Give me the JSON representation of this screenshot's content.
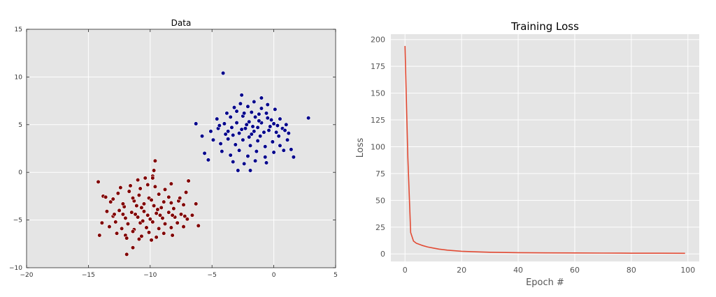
{
  "chart_data": [
    {
      "type": "scatter",
      "title": "Data",
      "xlabel": "",
      "ylabel": "",
      "xlim": [
        -20,
        5
      ],
      "ylim": [
        -10,
        15
      ],
      "xticks": [
        -20,
        -15,
        -10,
        -5,
        0,
        5
      ],
      "yticks": [
        -10,
        -5,
        0,
        5,
        10,
        15
      ],
      "grid": true,
      "colors": {
        "class_0": "#800000",
        "class_1": "#00008b",
        "background": "#e5e5e5"
      },
      "series": [
        {
          "points": [
            [
              -13.8,
              -2.5
            ],
            [
              -13.2,
              -3.1
            ],
            [
              -12.6,
              -2.2
            ],
            [
              -12.1,
              -3.6
            ],
            [
              -11.7,
              -2.0
            ],
            [
              -11.3,
              -3.0
            ],
            [
              -10.9,
              -2.4
            ],
            [
              -10.5,
              -3.3
            ],
            [
              -10.1,
              -2.7
            ],
            [
              -9.7,
              -3.5
            ],
            [
              -9.3,
              -2.3
            ],
            [
              -8.9,
              -3.1
            ],
            [
              -8.5,
              -2.6
            ],
            [
              -8.1,
              -3.8
            ],
            [
              -7.7,
              -3.0
            ],
            [
              -7.3,
              -3.4
            ],
            [
              -13.5,
              -4.1
            ],
            [
              -13.0,
              -4.6
            ],
            [
              -12.5,
              -4.0
            ],
            [
              -12.0,
              -4.8
            ],
            [
              -11.5,
              -4.2
            ],
            [
              -11.0,
              -4.7
            ],
            [
              -10.5,
              -4.1
            ],
            [
              -10.0,
              -4.9
            ],
            [
              -9.5,
              -4.3
            ],
            [
              -9.0,
              -4.8
            ],
            [
              -8.5,
              -4.2
            ],
            [
              -8.0,
              -4.7
            ],
            [
              -7.5,
              -4.4
            ],
            [
              -7.0,
              -4.9
            ],
            [
              -6.6,
              -4.5
            ],
            [
              -13.9,
              -5.3
            ],
            [
              -13.3,
              -5.7
            ],
            [
              -12.8,
              -5.2
            ],
            [
              -12.3,
              -5.9
            ],
            [
              -11.8,
              -5.4
            ],
            [
              -11.3,
              -6.0
            ],
            [
              -10.8,
              -5.3
            ],
            [
              -10.3,
              -5.8
            ],
            [
              -9.8,
              -5.2
            ],
            [
              -9.3,
              -5.9
            ],
            [
              -8.8,
              -5.4
            ],
            [
              -8.3,
              -5.8
            ],
            [
              -7.8,
              -5.3
            ],
            [
              -7.3,
              -5.7
            ],
            [
              -12.7,
              -6.4
            ],
            [
              -12.0,
              -6.6
            ],
            [
              -11.4,
              -6.2
            ],
            [
              -10.7,
              -6.7
            ],
            [
              -10.1,
              -6.3
            ],
            [
              -9.5,
              -6.8
            ],
            [
              -8.9,
              -6.4
            ],
            [
              -8.2,
              -6.6
            ],
            [
              -11.9,
              -6.9
            ],
            [
              -10.9,
              -7.0
            ],
            [
              -9.9,
              -7.1
            ],
            [
              -12.4,
              -1.6
            ],
            [
              -11.6,
              -1.4
            ],
            [
              -10.8,
              -1.7
            ],
            [
              -10.2,
              -1.3
            ],
            [
              -9.6,
              -1.5
            ],
            [
              -8.8,
              -1.8
            ],
            [
              -8.3,
              -1.2
            ],
            [
              -11.0,
              -0.8
            ],
            [
              -10.4,
              -0.6
            ],
            [
              -9.8,
              -0.4
            ],
            [
              -13.0,
              -2.8
            ],
            [
              -12.2,
              -3.3
            ],
            [
              -11.4,
              -2.7
            ],
            [
              -10.7,
              -3.7
            ],
            [
              -9.9,
              -2.9
            ],
            [
              -9.1,
              -3.7
            ],
            [
              -8.3,
              -3.2
            ],
            [
              -7.6,
              -2.7
            ],
            [
              -12.9,
              -4.4
            ],
            [
              -12.2,
              -4.4
            ],
            [
              -11.2,
              -4.4
            ],
            [
              -10.2,
              -4.5
            ],
            [
              -9.2,
              -4.5
            ],
            [
              -8.2,
              -4.5
            ],
            [
              -7.2,
              -4.6
            ],
            [
              -14.2,
              -1.0
            ],
            [
              -14.1,
              -6.6
            ],
            [
              -6.1,
              -5.6
            ],
            [
              -6.3,
              -3.3
            ],
            [
              -11.4,
              -7.9
            ],
            [
              -11.9,
              -8.6
            ],
            [
              -9.8,
              -0.6
            ],
            [
              -9.7,
              0.2
            ],
            [
              -9.6,
              1.2
            ],
            [
              -6.9,
              -0.9
            ],
            [
              -13.6,
              -2.6
            ],
            [
              -7.1,
              -2.1
            ],
            [
              -10.6,
              -5.1
            ],
            [
              -9.4,
              -3.9
            ],
            [
              -11.1,
              -3.5
            ]
          ]
        },
        {
          "points": [
            [
              -4.1,
              10.4
            ],
            [
              2.8,
              5.7
            ],
            [
              -6.3,
              5.1
            ],
            [
              -5.3,
              1.3
            ],
            [
              -2.9,
              0.2
            ],
            [
              -1.9,
              0.2
            ],
            [
              1.6,
              1.6
            ],
            [
              -2.6,
              8.1
            ],
            [
              -3.8,
              6.2
            ],
            [
              -3.2,
              6.8
            ],
            [
              -2.7,
              7.2
            ],
            [
              -2.1,
              6.9
            ],
            [
              -1.6,
              7.4
            ],
            [
              -1.0,
              6.7
            ],
            [
              -0.5,
              7.1
            ],
            [
              0.1,
              6.6
            ],
            [
              -4.6,
              5.6
            ],
            [
              -4.0,
              5.1
            ],
            [
              -3.5,
              5.8
            ],
            [
              -3.0,
              5.2
            ],
            [
              -2.5,
              5.9
            ],
            [
              -2.0,
              5.3
            ],
            [
              -1.5,
              5.8
            ],
            [
              -1.0,
              5.2
            ],
            [
              -0.5,
              5.7
            ],
            [
              0.0,
              5.1
            ],
            [
              0.5,
              5.6
            ],
            [
              1.0,
              5.0
            ],
            [
              -5.1,
              4.3
            ],
            [
              -4.5,
              4.6
            ],
            [
              -3.9,
              4.0
            ],
            [
              -3.4,
              4.7
            ],
            [
              -2.8,
              4.1
            ],
            [
              -2.3,
              4.6
            ],
            [
              -1.8,
              4.0
            ],
            [
              -1.3,
              4.7
            ],
            [
              -0.8,
              4.2
            ],
            [
              -0.3,
              4.8
            ],
            [
              0.2,
              4.2
            ],
            [
              0.7,
              4.6
            ],
            [
              1.2,
              4.1
            ],
            [
              -4.9,
              3.4
            ],
            [
              -4.3,
              3.0
            ],
            [
              -3.7,
              3.5
            ],
            [
              -3.1,
              2.9
            ],
            [
              -2.5,
              3.4
            ],
            [
              -1.9,
              2.8
            ],
            [
              -1.3,
              3.3
            ],
            [
              -0.7,
              2.7
            ],
            [
              -0.1,
              3.2
            ],
            [
              0.5,
              2.8
            ],
            [
              1.1,
              3.4
            ],
            [
              -4.2,
              2.2
            ],
            [
              -3.5,
              1.8
            ],
            [
              -2.8,
              2.3
            ],
            [
              -2.1,
              1.7
            ],
            [
              -1.4,
              2.2
            ],
            [
              -0.7,
              1.6
            ],
            [
              0.0,
              2.1
            ],
            [
              0.8,
              2.3
            ],
            [
              -3.3,
              1.1
            ],
            [
              -2.4,
              0.9
            ],
            [
              -1.5,
              1.2
            ],
            [
              -0.6,
              1.0
            ],
            [
              -3.0,
              6.4
            ],
            [
              -2.4,
              6.2
            ],
            [
              -1.8,
              6.3
            ],
            [
              -1.2,
              6.1
            ],
            [
              -0.6,
              6.2
            ],
            [
              -4.4,
              4.9
            ],
            [
              -3.7,
              4.3
            ],
            [
              -3.3,
              3.9
            ],
            [
              -2.6,
              4.5
            ],
            [
              -2.0,
              3.7
            ],
            [
              -1.6,
              4.3
            ],
            [
              -1.1,
              3.8
            ],
            [
              -0.4,
              4.4
            ],
            [
              0.4,
              3.8
            ],
            [
              0.9,
              4.4
            ],
            [
              -2.2,
              5.0
            ],
            [
              -1.7,
              4.8
            ],
            [
              -1.2,
              5.4
            ],
            [
              -0.2,
              5.5
            ],
            [
              0.3,
              4.9
            ],
            [
              1.4,
              2.4
            ],
            [
              -5.6,
              2.0
            ],
            [
              -5.8,
              3.8
            ],
            [
              -1.0,
              7.8
            ]
          ]
        }
      ]
    },
    {
      "type": "line",
      "title": "Training Loss",
      "xlabel": "Epoch #",
      "ylabel": "Loss",
      "xlim": [
        -5,
        104
      ],
      "ylim": [
        -7,
        205
      ],
      "xticks": [
        0,
        20,
        40,
        60,
        80,
        100
      ],
      "yticks": [
        0,
        25,
        50,
        75,
        100,
        125,
        150,
        175,
        200
      ],
      "grid": true,
      "colors": {
        "line": "#e24a33",
        "background": "#e5e5e5"
      },
      "series": [
        {
          "x": [
            0,
            1,
            2,
            3,
            4,
            5,
            6,
            8,
            10,
            12,
            15,
            20,
            25,
            30,
            40,
            50,
            60,
            70,
            80,
            90,
            99
          ],
          "values": [
            194,
            90,
            20,
            12,
            10,
            9,
            8,
            6.5,
            5.5,
            4.5,
            3.5,
            2.5,
            2.0,
            1.6,
            1.2,
            1.0,
            0.9,
            0.8,
            0.7,
            0.7,
            0.6
          ]
        }
      ]
    }
  ]
}
